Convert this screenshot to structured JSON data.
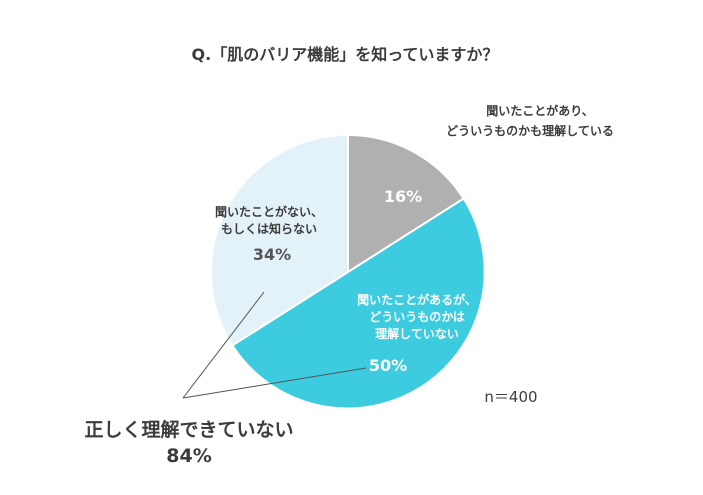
{
  "chart_data": {
    "type": "pie",
    "title": "Q.「肌のバリア機能」を知っていますか？",
    "slices": [
      {
        "label_lines": [
          "聞いたことがあり、",
          "どういうものかも理解している"
        ],
        "value": 16,
        "value_label": "16%",
        "color": "#b0b0b0"
      },
      {
        "label_lines": [
          "聞いたことがあるが、",
          "どういうものかは",
          "理解していない"
        ],
        "value": 50,
        "value_label": "50%",
        "color": "#3dcbe0"
      },
      {
        "label_lines": [
          "聞いたことがない、",
          "もしくは知らない"
        ],
        "value": 34,
        "value_label": "34%",
        "color": "#e3f2f8"
      }
    ],
    "sample_size": "n＝400",
    "summary": {
      "label": "正しく理解できていない",
      "value_label": "84%"
    }
  }
}
